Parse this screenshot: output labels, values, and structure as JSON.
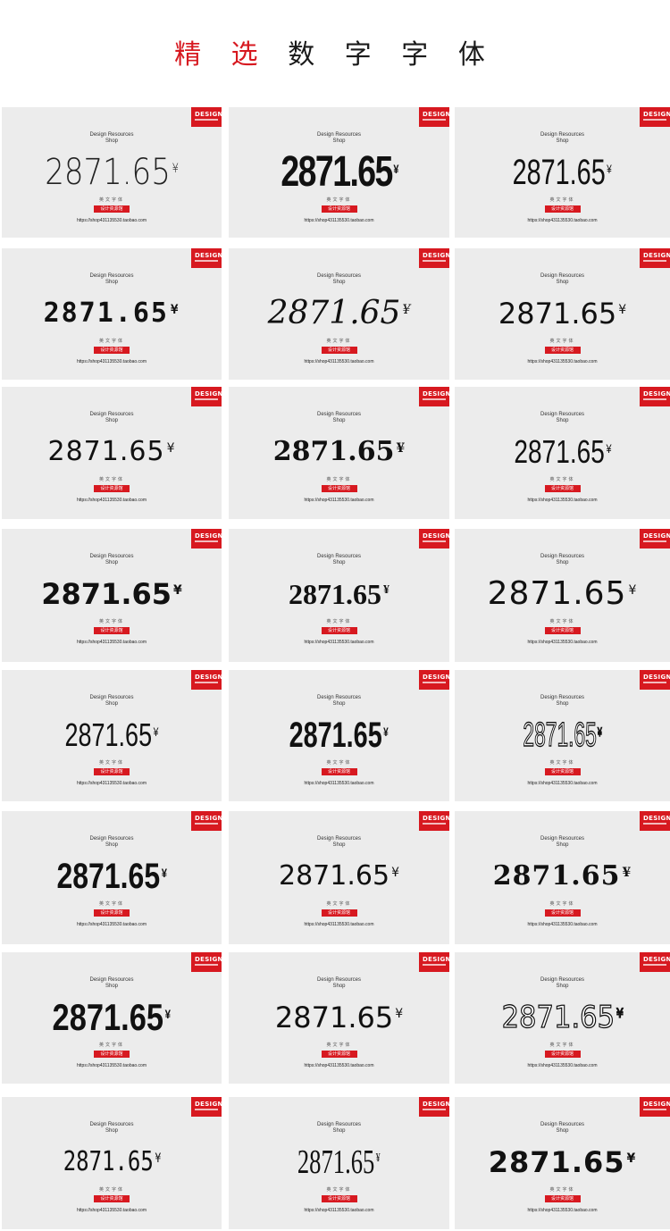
{
  "header": {
    "title_red": "精 选",
    "title_rest": " 数 字 字 体"
  },
  "card_common": {
    "label_line1": "Design Resources",
    "label_line2": "Shop",
    "sample_number": "2871.65",
    "yen": "¥",
    "subtitle": "英文字体",
    "button_label": "设计资源馆",
    "url": "https://shop431135530.taobao.com",
    "badge_label": "DESIGN"
  },
  "colors": {
    "accent_red": "#d71920",
    "card_bg": "#ececec",
    "page_bg": "#ffffff"
  },
  "cards": [
    {
      "style": "s1"
    },
    {
      "style": "s2"
    },
    {
      "style": "s3"
    },
    {
      "style": "s4"
    },
    {
      "style": "s5"
    },
    {
      "style": "s6"
    },
    {
      "style": "s7"
    },
    {
      "style": "s8"
    },
    {
      "style": "s9"
    },
    {
      "style": "s10"
    },
    {
      "style": "s11"
    },
    {
      "style": "s12"
    },
    {
      "style": "s13"
    },
    {
      "style": "s14"
    },
    {
      "style": "s15"
    },
    {
      "style": "s16"
    },
    {
      "style": "s17"
    },
    {
      "style": "s18"
    },
    {
      "style": "s19"
    },
    {
      "style": "s20"
    },
    {
      "style": "s21"
    },
    {
      "style": "s22"
    },
    {
      "style": "s23"
    },
    {
      "style": "s24"
    }
  ]
}
